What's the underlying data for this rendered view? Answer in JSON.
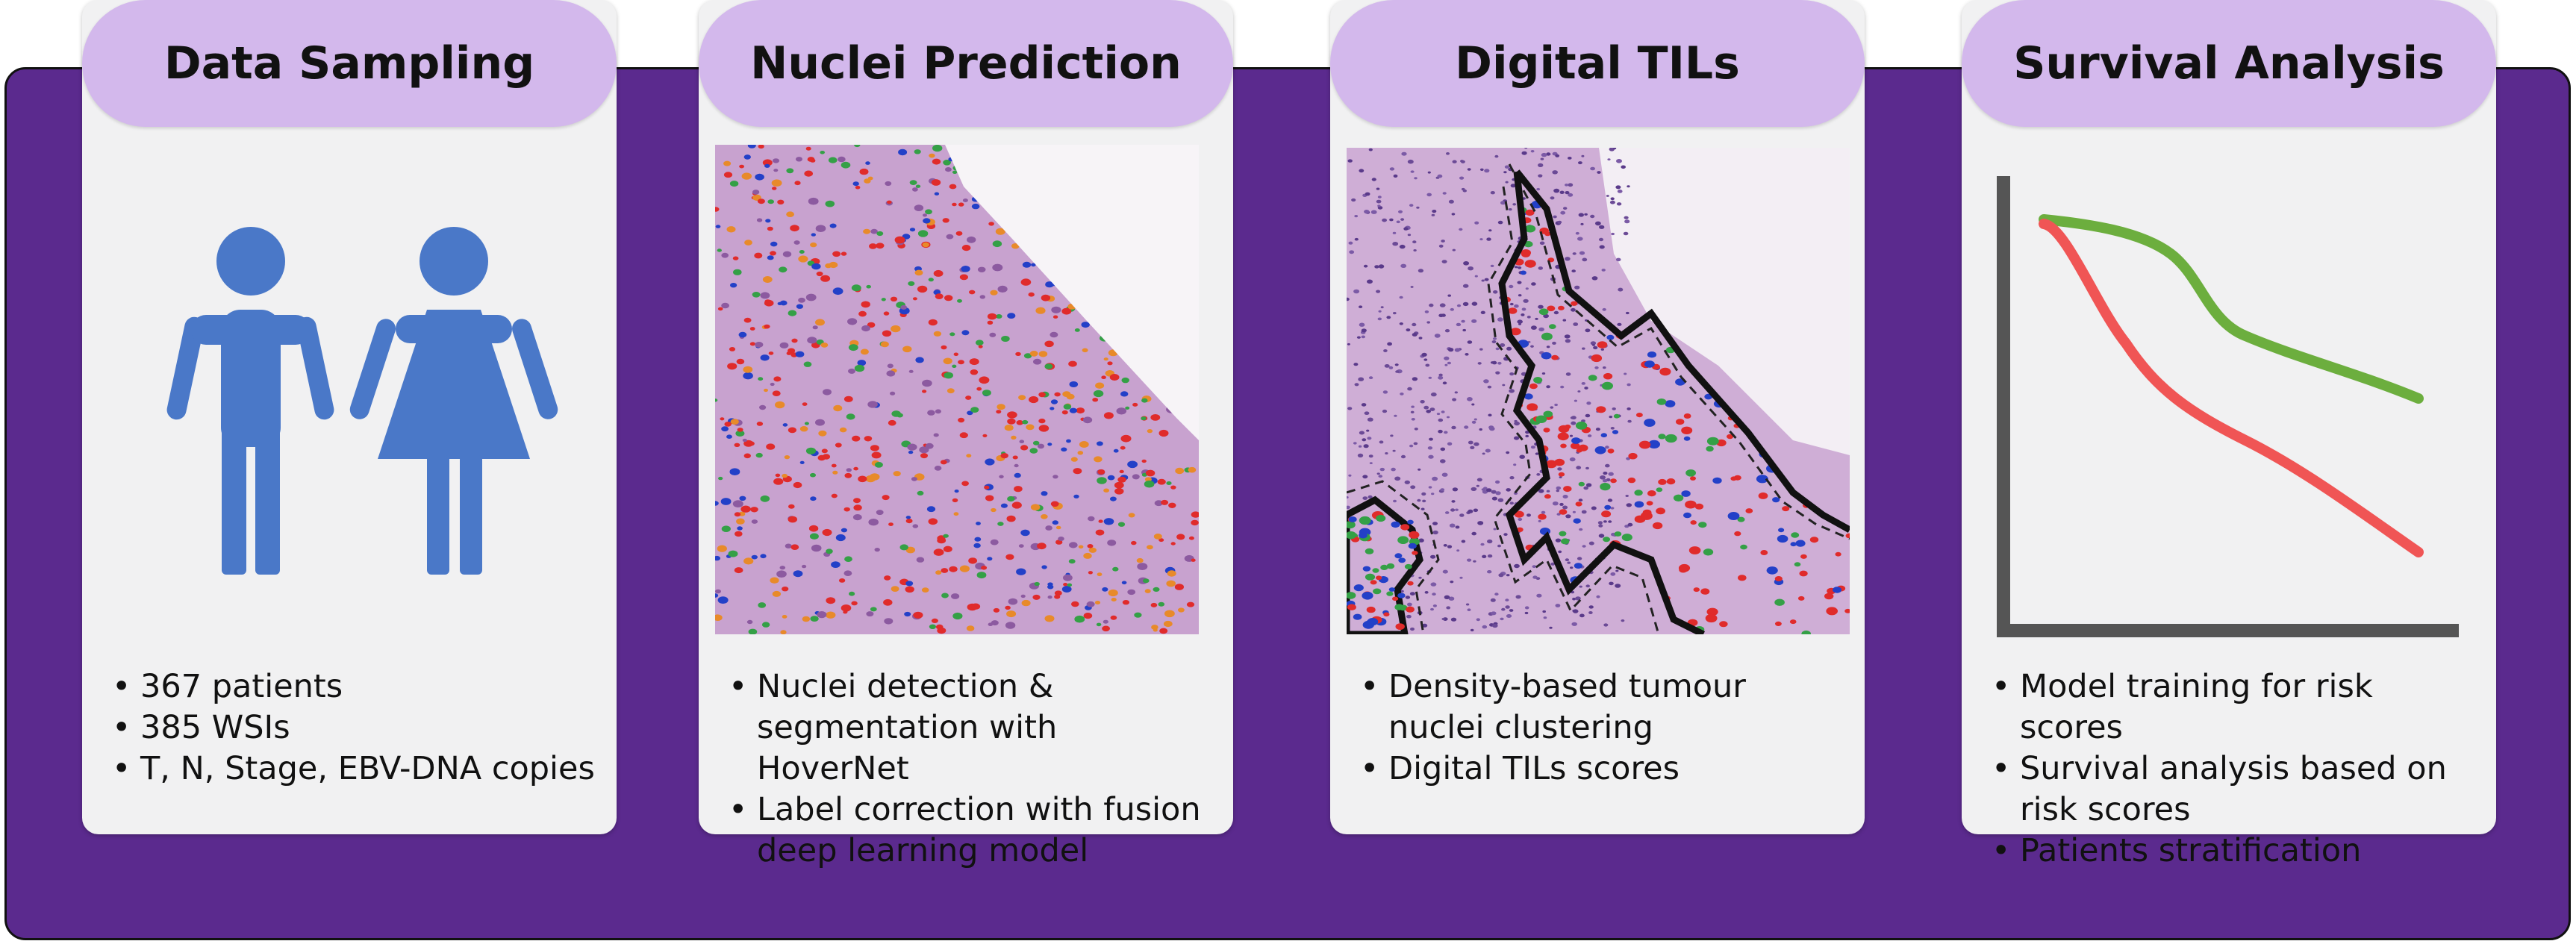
{
  "panels": [
    {
      "title": "Data Sampling",
      "bullets": [
        "367 patients",
        "385 WSIs",
        "T, N, Stage, EBV-DNA copies"
      ]
    },
    {
      "title": "Nuclei Prediction",
      "bullets": [
        "Nuclei detection & segmentation with HoverNet",
        "Label correction with fusion deep learning model"
      ]
    },
    {
      "title": "Digital TILs",
      "bullets": [
        "Density-based tumour nuclei clustering",
        "Digital TILs scores"
      ]
    },
    {
      "title": "Survival Analysis",
      "bullets": [
        "Model training for risk scores",
        "Survival analysis based on risk scores",
        "Patients stratification"
      ]
    }
  ],
  "colors": {
    "frame": "#5b2a8e",
    "header": "#d3b8ec",
    "card": "#f1f1f2",
    "person_icon": "#4a78c8",
    "curve_low_risk": "#6cae3e",
    "curve_high_risk": "#f05555",
    "axis": "#555555",
    "nuclei_tumour": "#e02b2b",
    "nuclei_lymphocyte": "#2340c8",
    "nuclei_stromal": "#34a046",
    "nuclei_other": "#e88a2a",
    "tissue": "#c8a2cf"
  }
}
